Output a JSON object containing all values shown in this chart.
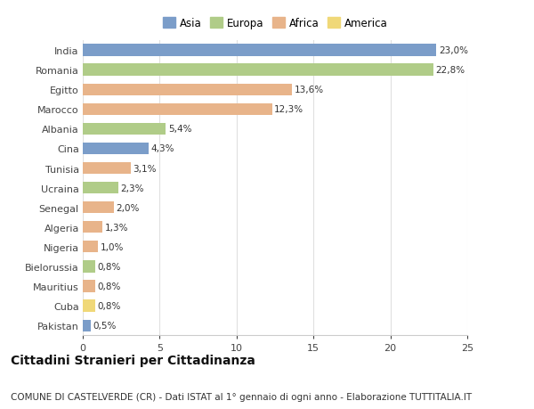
{
  "countries": [
    "India",
    "Romania",
    "Egitto",
    "Marocco",
    "Albania",
    "Cina",
    "Tunisia",
    "Ucraina",
    "Senegal",
    "Algeria",
    "Nigeria",
    "Bielorussia",
    "Mauritius",
    "Cuba",
    "Pakistan"
  ],
  "values": [
    23.0,
    22.8,
    13.6,
    12.3,
    5.4,
    4.3,
    3.1,
    2.3,
    2.0,
    1.3,
    1.0,
    0.8,
    0.8,
    0.8,
    0.5
  ],
  "labels": [
    "23,0%",
    "22,8%",
    "13,6%",
    "12,3%",
    "5,4%",
    "4,3%",
    "3,1%",
    "2,3%",
    "2,0%",
    "1,3%",
    "1,0%",
    "0,8%",
    "0,8%",
    "0,8%",
    "0,5%"
  ],
  "continents": [
    "Asia",
    "Europa",
    "Africa",
    "Africa",
    "Europa",
    "Asia",
    "Africa",
    "Europa",
    "Africa",
    "Africa",
    "Africa",
    "Europa",
    "Africa",
    "America",
    "Asia"
  ],
  "continent_colors": {
    "Asia": "#7b9dc9",
    "Europa": "#b0cc88",
    "Africa": "#e8b48a",
    "America": "#f0d878"
  },
  "legend_order": [
    "Asia",
    "Europa",
    "Africa",
    "America"
  ],
  "background_color": "#ffffff",
  "title": "Cittadini Stranieri per Cittadinanza",
  "subtitle": "COMUNE DI CASTELVERDE (CR) - Dati ISTAT al 1° gennaio di ogni anno - Elaborazione TUTTITALIA.IT",
  "xlim": [
    0,
    25
  ],
  "xticks": [
    0,
    5,
    10,
    15,
    20,
    25
  ],
  "grid_color": "#e0e0e0",
  "bar_height": 0.6,
  "title_fontsize": 10,
  "subtitle_fontsize": 7.5,
  "label_fontsize": 7.5,
  "ytick_fontsize": 8,
  "xtick_fontsize": 8,
  "legend_fontsize": 8.5
}
